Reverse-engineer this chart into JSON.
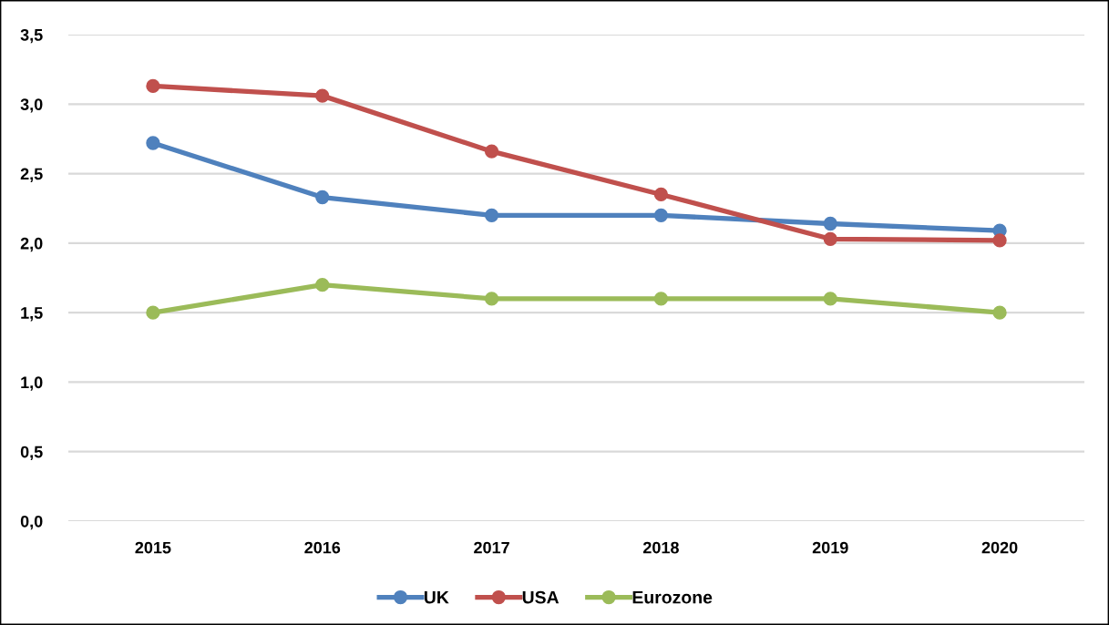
{
  "chart_data": {
    "type": "line",
    "categories": [
      "2015",
      "2016",
      "2017",
      "2018",
      "2019",
      "2020"
    ],
    "series": [
      {
        "name": "UK",
        "color": "#4f81bd",
        "values": [
          2.72,
          2.33,
          2.2,
          2.2,
          2.14,
          2.09
        ]
      },
      {
        "name": "USA",
        "color": "#c0504d",
        "values": [
          3.13,
          3.06,
          2.66,
          2.35,
          2.03,
          2.02
        ]
      },
      {
        "name": "Eurozone",
        "color": "#9bbb59",
        "values": [
          1.5,
          1.7,
          1.6,
          1.6,
          1.6,
          1.5
        ]
      }
    ],
    "ylim": [
      0,
      3.5
    ],
    "yticks": [
      {
        "value": 0,
        "label": "0,0"
      },
      {
        "value": 0.5,
        "label": "0,5"
      },
      {
        "value": 1.0,
        "label": "1,0"
      },
      {
        "value": 1.5,
        "label": "1,5"
      },
      {
        "value": 2.0,
        "label": "2,0"
      },
      {
        "value": 2.5,
        "label": "2,5"
      },
      {
        "value": 3.0,
        "label": "3,0"
      },
      {
        "value": 3.5,
        "label": "3,5"
      }
    ],
    "grid": "y",
    "legend": "bottom",
    "marker": "circle",
    "line_style": "solid"
  }
}
